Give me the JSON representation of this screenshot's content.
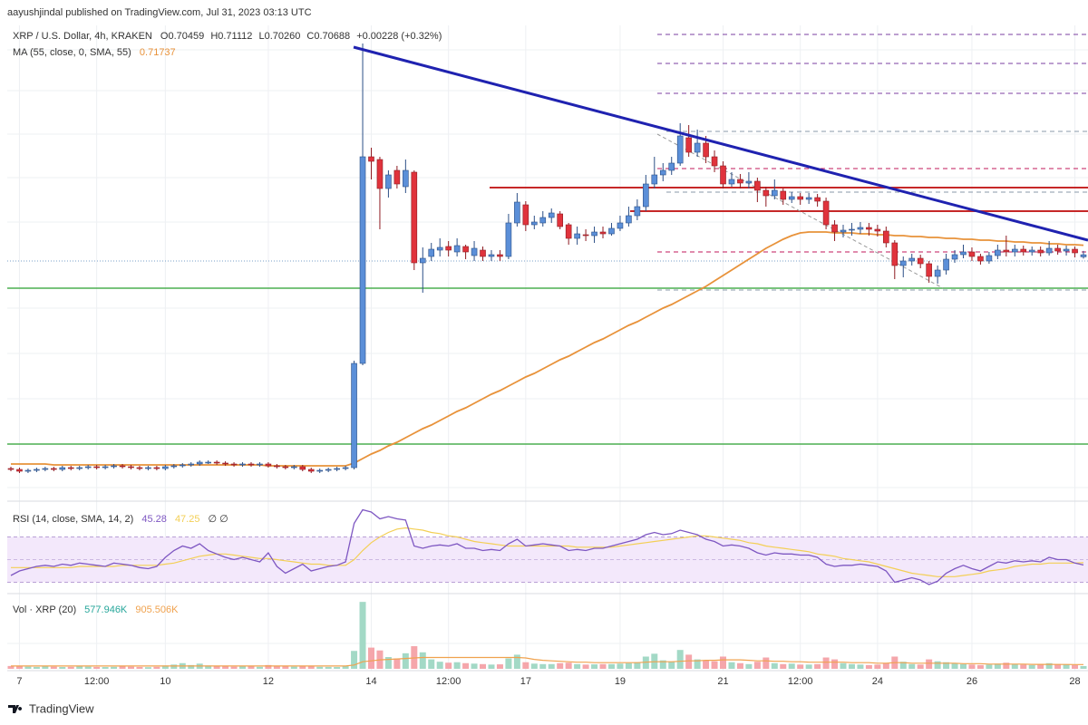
{
  "header": {
    "publisher": "aayushjindal published on TradingView.com, Jul 31, 2023 03:13 UTC"
  },
  "footer": {
    "brand": "TradingView"
  },
  "chart_data": {
    "type": "candlestick",
    "title": "XRP / U.S. Dollar, 4h, KRAKEN",
    "ohlc": [
      "O0.70459",
      "H0.71112",
      "L0.70260",
      "C0.70688"
    ],
    "change": "+0.00228 (+0.32%)",
    "up_color": "#5b8fd8",
    "down_color": "#e0333c",
    "ylim": [
      0.44,
      0.96
    ],
    "categories": [
      null,
      "7",
      null,
      null,
      null,
      null,
      null,
      null,
      null,
      null,
      "12:00",
      null,
      null,
      null,
      null,
      null,
      null,
      null,
      "10",
      null,
      null,
      null,
      null,
      null,
      null,
      null,
      null,
      null,
      null,
      null,
      "12",
      null,
      null,
      null,
      null,
      null,
      null,
      null,
      null,
      null,
      null,
      null,
      "14",
      null,
      null,
      null,
      null,
      null,
      null,
      null,
      null,
      "12:00",
      null,
      null,
      null,
      null,
      null,
      null,
      null,
      null,
      "17",
      null,
      null,
      null,
      null,
      null,
      null,
      null,
      null,
      null,
      null,
      "19",
      null,
      null,
      null,
      null,
      null,
      null,
      null,
      null,
      null,
      null,
      null,
      "21",
      null,
      null,
      null,
      null,
      null,
      null,
      null,
      null,
      "12:00",
      null,
      null,
      null,
      null,
      null,
      null,
      null,
      null,
      "24",
      null,
      null,
      null,
      null,
      null,
      null,
      null,
      null,
      null,
      null,
      "26",
      null,
      null,
      null,
      null,
      null,
      null,
      null,
      null,
      null,
      null,
      null,
      "28",
      null
    ],
    "open": [
      0.471,
      0.47,
      0.468,
      0.469,
      0.47,
      0.471,
      0.47,
      0.472,
      0.471,
      0.472,
      0.473,
      0.472,
      0.473,
      0.474,
      0.473,
      0.472,
      0.471,
      0.472,
      0.471,
      0.473,
      0.474,
      0.475,
      0.476,
      0.478,
      0.478,
      0.477,
      0.476,
      0.475,
      0.476,
      0.475,
      0.476,
      0.474,
      0.473,
      0.472,
      0.473,
      0.47,
      0.468,
      0.469,
      0.47,
      0.471,
      0.472,
      0.587,
      0.815,
      0.812,
      0.78,
      0.8,
      0.782,
      0.798,
      0.698,
      0.705,
      0.712,
      0.716,
      0.71,
      0.716,
      0.706,
      0.712,
      0.705,
      0.707,
      0.705,
      0.742,
      0.762,
      0.74,
      0.742,
      0.748,
      0.752,
      0.74,
      0.725,
      0.729,
      0.728,
      0.732,
      0.73,
      0.736,
      0.742,
      0.75,
      0.76,
      0.785,
      0.795,
      0.8,
      0.808,
      0.836,
      0.82,
      0.83,
      0.815,
      0.805,
      0.785,
      0.79,
      0.786,
      0.788,
      0.778,
      0.772,
      0.777,
      0.768,
      0.771,
      0.768,
      0.77,
      0.766,
      0.74,
      0.732,
      0.734,
      0.735,
      0.737,
      0.735,
      0.733,
      0.72,
      0.695,
      0.7,
      0.703,
      0.697,
      0.683,
      0.69,
      0.702,
      0.707,
      0.71,
      0.705,
      0.7,
      0.706,
      0.712,
      0.71,
      0.713,
      0.71,
      0.712,
      0.709,
      0.714,
      0.711,
      0.713,
      0.70459
    ],
    "high": [
      0.473,
      0.472,
      0.471,
      0.472,
      0.473,
      0.473,
      0.474,
      0.474,
      0.474,
      0.475,
      0.475,
      0.475,
      0.476,
      0.476,
      0.475,
      0.474,
      0.474,
      0.474,
      0.475,
      0.476,
      0.477,
      0.478,
      0.48,
      0.48,
      0.48,
      0.479,
      0.478,
      0.478,
      0.478,
      0.478,
      0.478,
      0.476,
      0.475,
      0.475,
      0.475,
      0.472,
      0.471,
      0.472,
      0.473,
      0.474,
      0.59,
      0.94,
      0.825,
      0.815,
      0.8,
      0.805,
      0.812,
      0.8,
      0.715,
      0.72,
      0.725,
      0.722,
      0.725,
      0.718,
      0.722,
      0.716,
      0.712,
      0.712,
      0.752,
      0.775,
      0.766,
      0.75,
      0.755,
      0.758,
      0.755,
      0.742,
      0.738,
      0.735,
      0.738,
      0.738,
      0.742,
      0.75,
      0.76,
      0.768,
      0.795,
      0.815,
      0.808,
      0.815,
      0.852,
      0.85,
      0.845,
      0.838,
      0.822,
      0.81,
      0.798,
      0.796,
      0.798,
      0.792,
      0.782,
      0.79,
      0.78,
      0.776,
      0.775,
      0.775,
      0.774,
      0.77,
      0.745,
      0.74,
      0.742,
      0.743,
      0.742,
      0.74,
      0.738,
      0.723,
      0.705,
      0.708,
      0.707,
      0.7,
      0.695,
      0.708,
      0.712,
      0.718,
      0.715,
      0.708,
      0.71,
      0.718,
      0.728,
      0.718,
      0.717,
      0.716,
      0.716,
      0.722,
      0.718,
      0.717,
      0.716,
      0.71112
    ],
    "low": [
      0.468,
      0.466,
      0.466,
      0.467,
      0.468,
      0.468,
      0.468,
      0.469,
      0.469,
      0.47,
      0.47,
      0.47,
      0.471,
      0.471,
      0.47,
      0.469,
      0.469,
      0.469,
      0.469,
      0.471,
      0.472,
      0.473,
      0.474,
      0.476,
      0.475,
      0.474,
      0.473,
      0.473,
      0.473,
      0.473,
      0.472,
      0.471,
      0.47,
      0.47,
      0.468,
      0.466,
      0.466,
      0.467,
      0.468,
      0.469,
      0.47,
      0.585,
      0.79,
      0.735,
      0.77,
      0.78,
      0.775,
      0.69,
      0.665,
      0.7,
      0.705,
      0.705,
      0.705,
      0.702,
      0.7,
      0.7,
      0.7,
      0.7,
      0.702,
      0.738,
      0.733,
      0.735,
      0.738,
      0.742,
      0.735,
      0.718,
      0.718,
      0.722,
      0.72,
      0.725,
      0.728,
      0.733,
      0.738,
      0.745,
      0.755,
      0.78,
      0.788,
      0.795,
      0.805,
      0.815,
      0.815,
      0.808,
      0.798,
      0.78,
      0.782,
      0.78,
      0.78,
      0.765,
      0.76,
      0.768,
      0.762,
      0.764,
      0.762,
      0.763,
      0.76,
      0.735,
      0.722,
      0.726,
      0.728,
      0.73,
      0.728,
      0.727,
      0.715,
      0.68,
      0.682,
      0.695,
      0.692,
      0.676,
      0.675,
      0.685,
      0.698,
      0.703,
      0.7,
      0.696,
      0.697,
      0.702,
      0.705,
      0.705,
      0.706,
      0.706,
      0.705,
      0.706,
      0.707,
      0.706,
      0.704,
      0.7026
    ],
    "close": [
      0.47,
      0.468,
      0.469,
      0.47,
      0.471,
      0.47,
      0.472,
      0.471,
      0.472,
      0.473,
      0.472,
      0.473,
      0.474,
      0.473,
      0.472,
      0.471,
      0.472,
      0.471,
      0.473,
      0.474,
      0.475,
      0.476,
      0.478,
      0.478,
      0.477,
      0.476,
      0.475,
      0.476,
      0.475,
      0.476,
      0.474,
      0.473,
      0.472,
      0.473,
      0.47,
      0.468,
      0.469,
      0.47,
      0.471,
      0.472,
      0.587,
      0.815,
      0.81,
      0.78,
      0.795,
      0.785,
      0.8,
      0.698,
      0.703,
      0.713,
      0.715,
      0.712,
      0.717,
      0.71,
      0.714,
      0.705,
      0.707,
      0.705,
      0.742,
      0.765,
      0.74,
      0.743,
      0.748,
      0.753,
      0.738,
      0.725,
      0.73,
      0.728,
      0.732,
      0.73,
      0.736,
      0.742,
      0.75,
      0.76,
      0.785,
      0.795,
      0.8,
      0.808,
      0.838,
      0.82,
      0.83,
      0.815,
      0.805,
      0.785,
      0.79,
      0.786,
      0.788,
      0.778,
      0.772,
      0.778,
      0.768,
      0.771,
      0.768,
      0.77,
      0.766,
      0.74,
      0.732,
      0.734,
      0.735,
      0.737,
      0.735,
      0.733,
      0.72,
      0.695,
      0.7,
      0.703,
      0.697,
      0.683,
      0.69,
      0.702,
      0.707,
      0.71,
      0.705,
      0.7,
      0.706,
      0.712,
      0.71,
      0.713,
      0.71,
      0.712,
      0.709,
      0.714,
      0.711,
      0.713,
      0.709,
      0.70688
    ],
    "ma": {
      "name": "MA (55, close, 0, SMA, 55)",
      "value_label": "0.71737",
      "color": "#e8923a",
      "values": [
        0.476,
        0.476,
        0.476,
        0.476,
        0.476,
        0.475,
        0.475,
        0.475,
        0.475,
        0.475,
        0.475,
        0.475,
        0.475,
        0.475,
        0.475,
        0.475,
        0.475,
        0.475,
        0.475,
        0.475,
        0.475,
        0.475,
        0.475,
        0.475,
        0.475,
        0.475,
        0.475,
        0.475,
        0.475,
        0.475,
        0.474,
        0.474,
        0.474,
        0.474,
        0.474,
        0.474,
        0.474,
        0.474,
        0.474,
        0.474,
        0.477,
        0.482,
        0.487,
        0.491,
        0.496,
        0.5,
        0.505,
        0.51,
        0.515,
        0.519,
        0.524,
        0.529,
        0.534,
        0.538,
        0.543,
        0.548,
        0.553,
        0.557,
        0.562,
        0.567,
        0.572,
        0.576,
        0.581,
        0.586,
        0.591,
        0.595,
        0.6,
        0.605,
        0.61,
        0.614,
        0.619,
        0.624,
        0.629,
        0.633,
        0.638,
        0.643,
        0.648,
        0.652,
        0.657,
        0.662,
        0.667,
        0.672,
        0.678,
        0.684,
        0.69,
        0.696,
        0.702,
        0.708,
        0.714,
        0.719,
        0.724,
        0.728,
        0.731,
        0.732,
        0.732,
        0.732,
        0.731,
        0.731,
        0.731,
        0.73,
        0.73,
        0.729,
        0.729,
        0.728,
        0.728,
        0.727,
        0.727,
        0.726,
        0.726,
        0.725,
        0.725,
        0.724,
        0.724,
        0.723,
        0.723,
        0.722,
        0.722,
        0.721,
        0.721,
        0.72,
        0.72,
        0.719,
        0.719,
        0.718,
        0.718,
        0.71737
      ]
    },
    "rsi": {
      "name": "RSI (14, close, SMA, 14, 2)",
      "value_label": "45.28",
      "ma_value_label": "47.25",
      "extra": "∅ ∅",
      "color": "#7e57c2",
      "ma_color": "#f3cf55",
      "ylim": [
        0,
        100
      ],
      "values": [
        36,
        40,
        42,
        44,
        45,
        44,
        46,
        45,
        47,
        46,
        45,
        44,
        47,
        46,
        45,
        43,
        42,
        44,
        52,
        58,
        62,
        60,
        64,
        58,
        55,
        52,
        50,
        52,
        50,
        48,
        56,
        44,
        38,
        42,
        46,
        40,
        42,
        44,
        45,
        48,
        82,
        94,
        92,
        86,
        88,
        86,
        85,
        62,
        60,
        62,
        63,
        62,
        64,
        60,
        60,
        58,
        59,
        58,
        64,
        68,
        62,
        63,
        64,
        63,
        62,
        58,
        59,
        58,
        60,
        60,
        62,
        64,
        66,
        68,
        72,
        74,
        72,
        73,
        76,
        74,
        72,
        68,
        66,
        62,
        63,
        62,
        60,
        56,
        54,
        56,
        55,
        55,
        54,
        54,
        52,
        46,
        44,
        45,
        45,
        46,
        45,
        44,
        40,
        30,
        32,
        34,
        32,
        28,
        31,
        38,
        42,
        45,
        42,
        40,
        44,
        48,
        47,
        49,
        48,
        49,
        48,
        52,
        50,
        50,
        47,
        45.28
      ],
      "ma_values": [
        43,
        43,
        43,
        43,
        43,
        43,
        43,
        43,
        44,
        44,
        44,
        44,
        44,
        45,
        45,
        45,
        45,
        45,
        46,
        47,
        49,
        51,
        53,
        54,
        55,
        55,
        54,
        53,
        52,
        51,
        51,
        50,
        49,
        48,
        47,
        46,
        46,
        45,
        45,
        45,
        50,
        58,
        65,
        70,
        74,
        77,
        78,
        77,
        76,
        74,
        73,
        71,
        70,
        68,
        66,
        65,
        64,
        63,
        62,
        62,
        62,
        62,
        62,
        62,
        62,
        62,
        61,
        61,
        61,
        61,
        61,
        62,
        63,
        64,
        65,
        66,
        67,
        68,
        69,
        70,
        71,
        71,
        70,
        69,
        68,
        67,
        65,
        64,
        62,
        61,
        60,
        59,
        58,
        57,
        55,
        54,
        53,
        51,
        50,
        49,
        48,
        46,
        44,
        42,
        40,
        38,
        37,
        36,
        35,
        35,
        35,
        36,
        37,
        38,
        40,
        41,
        42,
        44,
        45,
        46,
        46,
        47,
        47,
        47,
        47,
        47.25
      ]
    },
    "volume": {
      "name": "Vol · XRP (20)",
      "value_label": "577.946K",
      "ma_value_label": "905.506K",
      "up_color": "#a3d9c6",
      "down_color": "#f5a6ab",
      "ma_color": "#f0a24e",
      "ylim": [
        0,
        15000000
      ],
      "values": [
        600000,
        500000,
        450000,
        400000,
        500000,
        450000,
        380000,
        420000,
        500000,
        450000,
        400000,
        380000,
        420000,
        500000,
        450000,
        400000,
        350000,
        420000,
        700000,
        900000,
        1200000,
        800000,
        1100000,
        700000,
        600000,
        500000,
        450000,
        500000,
        480000,
        420000,
        800000,
        600000,
        500000,
        450000,
        550000,
        500000,
        420000,
        400000,
        380000,
        600000,
        3800000,
        14200000,
        4500000,
        3900000,
        2500000,
        2200000,
        3300000,
        4800000,
        3500000,
        2000000,
        1500000,
        1300000,
        1400000,
        1200000,
        1100000,
        1000000,
        900000,
        950000,
        2200000,
        3000000,
        1400000,
        1100000,
        1000000,
        1000000,
        1200000,
        1300000,
        1000000,
        900000,
        950000,
        1000000,
        1000000,
        1100000,
        1200000,
        1400000,
        2600000,
        3200000,
        1800000,
        1500000,
        4000000,
        3000000,
        2000000,
        1800000,
        1600000,
        2600000,
        1400000,
        1200000,
        1000000,
        1500000,
        2400000,
        1200000,
        1000000,
        1100000,
        900000,
        900000,
        1000000,
        2400000,
        2000000,
        1200000,
        1000000,
        900000,
        800000,
        900000,
        1200000,
        2600000,
        1500000,
        1000000,
        900000,
        2000000,
        1600000,
        1400000,
        1200000,
        1000000,
        900000,
        800000,
        900000,
        1100000,
        1300000,
        1000000,
        900000,
        800000,
        900000,
        1200000,
        1000000,
        900000,
        800000,
        577946
      ],
      "ma_values": [
        600000,
        600000,
        600000,
        600000,
        600000,
        600000,
        600000,
        600000,
        600000,
        600000,
        600000,
        600000,
        600000,
        600000,
        600000,
        600000,
        600000,
        600000,
        600000,
        600000,
        600000,
        600000,
        600000,
        600000,
        600000,
        600000,
        600000,
        600000,
        600000,
        600000,
        600000,
        600000,
        600000,
        600000,
        600000,
        600000,
        600000,
        600000,
        600000,
        600000,
        800000,
        1500000,
        1700000,
        1900000,
        2000000,
        2100000,
        2200000,
        2300000,
        2400000,
        2400000,
        2400000,
        2400000,
        2400000,
        2400000,
        2400000,
        2400000,
        2400000,
        2400000,
        2400000,
        2400000,
        2300000,
        2000000,
        1800000,
        1700000,
        1600000,
        1500000,
        1400000,
        1400000,
        1300000,
        1300000,
        1300000,
        1300000,
        1300000,
        1300000,
        1400000,
        1500000,
        1500000,
        1500000,
        1600000,
        1700000,
        1700000,
        1800000,
        1800000,
        1900000,
        1900000,
        1900000,
        1800000,
        1700000,
        1700000,
        1600000,
        1600000,
        1500000,
        1500000,
        1400000,
        1400000,
        1400000,
        1400000,
        1400000,
        1300000,
        1300000,
        1300000,
        1200000,
        1200000,
        1300000,
        1300000,
        1200000,
        1200000,
        1200000,
        1200000,
        1200000,
        1200000,
        1100000,
        1100000,
        1100000,
        1000000,
        1000000,
        1000000,
        1000000,
        1000000,
        950000,
        950000,
        950000,
        930000,
        920000,
        910000,
        905506
      ]
    }
  }
}
